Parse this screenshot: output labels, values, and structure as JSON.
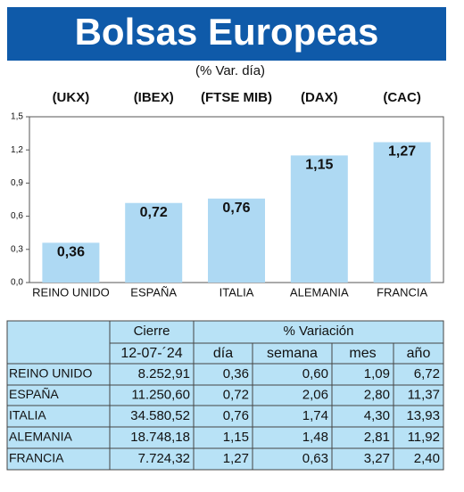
{
  "chart_data": {
    "type": "bar",
    "title": "Bolsas Europeas",
    "subtitle": "(% Var. día)",
    "tickers": [
      "(UKX)",
      "(IBEX)",
      "(FTSE MIB)",
      "(DAX)",
      "(CAC)"
    ],
    "categories": [
      "REINO UNIDO",
      "ESPAÑA",
      "ITALIA",
      "ALEMANIA",
      "FRANCIA"
    ],
    "values": [
      0.36,
      0.72,
      0.76,
      1.15,
      1.27
    ],
    "value_labels": [
      "0,36",
      "0,72",
      "0,76",
      "1,15",
      "1,27"
    ],
    "color": "#aed9f3",
    "ylim": [
      0,
      1.5
    ],
    "yticks": [
      {
        "value": 0,
        "label": "0,0"
      },
      {
        "value": 0.3,
        "label": "0,3"
      },
      {
        "value": 0.6,
        "label": "0,6"
      },
      {
        "value": 0.9,
        "label": "0,9"
      },
      {
        "value": 1.2,
        "label": "1,2"
      },
      {
        "value": 1.5,
        "label": "1,5"
      }
    ],
    "grid": false
  },
  "table": {
    "header": [
      "Cierre",
      "% Variación"
    ],
    "subheader": [
      "12-07-´24",
      "día",
      "semana",
      "mes",
      "año"
    ],
    "rows": [
      [
        "REINO UNIDO",
        "8.252,91",
        "0,36",
        "0,60",
        "1,09",
        "6,72"
      ],
      [
        "ESPAÑA",
        "11.250,60",
        "0,72",
        "2,06",
        "2,80",
        "11,37"
      ],
      [
        "ITALIA",
        "34.580,52",
        "0,76",
        "1,74",
        "4,30",
        "13,93"
      ],
      [
        "ALEMANIA",
        "18.748,18",
        "1,15",
        "1,48",
        "2,81",
        "11,92"
      ],
      [
        "FRANCIA",
        "7.724,32",
        "1,27",
        "0,63",
        "3,27",
        "2,40"
      ]
    ]
  }
}
